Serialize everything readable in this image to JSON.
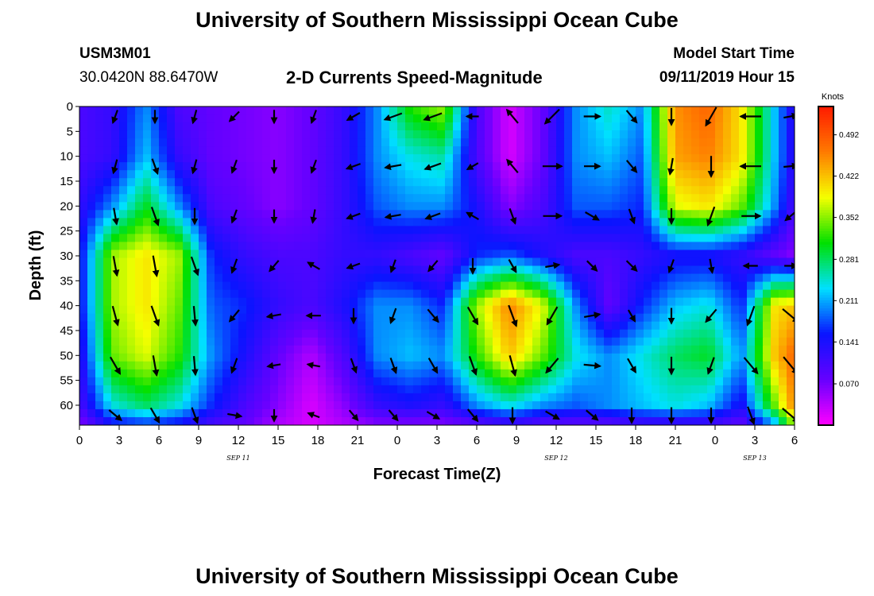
{
  "page": {
    "title_top": "University of Southern Mississippi Ocean Cube",
    "title_bottom": "University of Southern Mississippi Ocean Cube",
    "station_id": "USM3M01",
    "coords": "30.0420N 88.6470W",
    "plot_title": "2-D Currents Speed-Magnitude",
    "model_start_label": "Model Start Time",
    "model_start_value": "09/11/2019 Hour 15"
  },
  "colors": {
    "scale": [
      "#ff00ff",
      "#6600ff",
      "#0a14ff",
      "#00e0ff",
      "#00e000",
      "#f5ff00",
      "#ff7a00",
      "#ff1a00"
    ]
  },
  "chart_data": {
    "type": "heatmap",
    "title": "2-D Currents Speed-Magnitude",
    "xlabel": "Forecast Time(Z)",
    "ylabel": "Depth (ft)",
    "ylim": [
      0,
      64
    ],
    "y_reversed": true,
    "xlim_hours": [
      0,
      54
    ],
    "x_tick_labels": [
      "0",
      "3",
      "6",
      "9",
      "12",
      "15",
      "18",
      "21",
      "0",
      "3",
      "6",
      "9",
      "12",
      "15",
      "18",
      "21",
      "0",
      "3",
      "6"
    ],
    "date_labels": [
      {
        "text": "SEP 11",
        "hour": 12
      },
      {
        "text": "SEP 12",
        "hour": 36
      },
      {
        "text": "SEP 13",
        "hour": 51
      }
    ],
    "y_ticks": [
      0,
      5,
      10,
      15,
      20,
      25,
      30,
      35,
      40,
      45,
      50,
      55,
      60
    ],
    "colorbar": {
      "label": "Knots",
      "min": 0,
      "max": 0.54,
      "tick_values": [
        0.07,
        0.141,
        0.211,
        0.281,
        0.352,
        0.422,
        0.492
      ],
      "tick_labels": [
        "0.070",
        "0.141",
        "0.211",
        "0.281",
        "0.352",
        "0.422",
        "0.492"
      ]
    },
    "speed_field": {
      "hours": [
        0,
        2.5,
        5,
        7.5,
        10,
        12.5,
        15,
        17.5,
        20,
        22.5,
        25,
        27.5,
        30,
        32.5,
        35,
        37.5,
        40,
        42.5,
        45,
        47.5,
        50,
        52.5,
        54
      ],
      "depths": [
        0,
        10,
        20,
        30,
        40,
        50,
        60,
        64
      ],
      "speed_knots": [
        [
          0.1,
          0.12,
          0.2,
          0.1,
          0.08,
          0.07,
          0.06,
          0.08,
          0.12,
          0.2,
          0.32,
          0.36,
          0.1,
          0.02,
          0.08,
          0.2,
          0.25,
          0.2,
          0.45,
          0.48,
          0.4,
          0.22,
          0.12
        ],
        [
          0.1,
          0.12,
          0.22,
          0.12,
          0.08,
          0.07,
          0.06,
          0.08,
          0.12,
          0.2,
          0.24,
          0.26,
          0.1,
          0.02,
          0.08,
          0.2,
          0.22,
          0.18,
          0.44,
          0.46,
          0.4,
          0.22,
          0.12
        ],
        [
          0.12,
          0.2,
          0.3,
          0.2,
          0.1,
          0.08,
          0.06,
          0.08,
          0.12,
          0.18,
          0.2,
          0.2,
          0.14,
          0.06,
          0.1,
          0.18,
          0.18,
          0.16,
          0.38,
          0.4,
          0.34,
          0.2,
          0.1
        ],
        [
          0.14,
          0.36,
          0.4,
          0.36,
          0.16,
          0.12,
          0.1,
          0.1,
          0.12,
          0.12,
          0.1,
          0.08,
          0.16,
          0.18,
          0.14,
          0.1,
          0.1,
          0.12,
          0.14,
          0.14,
          0.12,
          0.08,
          0.06
        ],
        [
          0.14,
          0.36,
          0.4,
          0.34,
          0.18,
          0.16,
          0.12,
          0.1,
          0.14,
          0.2,
          0.2,
          0.16,
          0.36,
          0.46,
          0.38,
          0.2,
          0.08,
          0.16,
          0.22,
          0.24,
          0.16,
          0.4,
          0.42
        ],
        [
          0.12,
          0.34,
          0.38,
          0.32,
          0.2,
          0.14,
          0.08,
          0.04,
          0.1,
          0.2,
          0.22,
          0.2,
          0.32,
          0.42,
          0.34,
          0.24,
          0.2,
          0.24,
          0.28,
          0.3,
          0.2,
          0.42,
          0.48
        ],
        [
          0.1,
          0.24,
          0.28,
          0.24,
          0.16,
          0.1,
          0.06,
          0.02,
          0.06,
          0.12,
          0.14,
          0.12,
          0.2,
          0.24,
          0.2,
          0.18,
          0.2,
          0.22,
          0.24,
          0.22,
          0.14,
          0.34,
          0.46
        ],
        [
          0.06,
          0.14,
          0.16,
          0.14,
          0.1,
          0.08,
          0.04,
          0.02,
          0.04,
          0.06,
          0.06,
          0.06,
          0.08,
          0.1,
          0.08,
          0.08,
          0.08,
          0.1,
          0.1,
          0.1,
          0.08,
          0.2,
          0.36
        ]
      ]
    },
    "vector_field": {
      "hours": [
        3,
        6,
        9,
        12,
        15,
        18,
        21,
        24,
        27,
        30,
        33,
        36,
        39,
        42,
        45,
        48,
        51,
        54
      ],
      "depths": [
        2,
        12,
        22,
        32,
        42,
        52,
        62
      ],
      "direction_deg_cw_from_up": [
        [
          200,
          180,
          195,
          225,
          180,
          200,
          240,
          250,
          250,
          270,
          320,
          225,
          90,
          140,
          180,
          210,
          270,
          80
        ],
        [
          195,
          160,
          195,
          200,
          180,
          200,
          250,
          260,
          250,
          240,
          320,
          90,
          90,
          140,
          190,
          180,
          270,
          85
        ],
        [
          170,
          160,
          180,
          200,
          180,
          190,
          250,
          260,
          250,
          300,
          160,
          90,
          120,
          160,
          180,
          200,
          90,
          230
        ],
        [
          170,
          170,
          160,
          200,
          220,
          300,
          250,
          200,
          220,
          180,
          150,
          80,
          135,
          135,
          200,
          170,
          270,
          90
        ],
        [
          165,
          160,
          175,
          220,
          260,
          270,
          180,
          200,
          140,
          150,
          160,
          210,
          80,
          150,
          180,
          220,
          200,
          130
        ],
        [
          150,
          170,
          175,
          200,
          260,
          280,
          160,
          160,
          150,
          160,
          165,
          220,
          95,
          150,
          180,
          200,
          140,
          140
        ],
        [
          130,
          150,
          160,
          100,
          180,
          290,
          140,
          140,
          120,
          140,
          180,
          120,
          130,
          180,
          180,
          180,
          160,
          130
        ]
      ],
      "magnitude_knots": [
        [
          0.1,
          0.08,
          0.1,
          0.1,
          0.08,
          0.1,
          0.14,
          0.3,
          0.32,
          0.04,
          0.26,
          0.38,
          0.22,
          0.2,
          0.24,
          0.42,
          0.4,
          0.12
        ],
        [
          0.12,
          0.2,
          0.12,
          0.1,
          0.08,
          0.1,
          0.14,
          0.22,
          0.24,
          0.06,
          0.24,
          0.34,
          0.2,
          0.18,
          0.22,
          0.4,
          0.4,
          0.12
        ],
        [
          0.22,
          0.34,
          0.2,
          0.1,
          0.08,
          0.1,
          0.12,
          0.18,
          0.18,
          0.1,
          0.2,
          0.3,
          0.18,
          0.16,
          0.18,
          0.36,
          0.32,
          0.1
        ],
        [
          0.36,
          0.4,
          0.34,
          0.14,
          0.12,
          0.1,
          0.1,
          0.08,
          0.12,
          0.18,
          0.14,
          0.12,
          0.12,
          0.14,
          0.1,
          0.12,
          0.12,
          0.06
        ],
        [
          0.36,
          0.4,
          0.34,
          0.16,
          0.12,
          0.12,
          0.16,
          0.18,
          0.22,
          0.36,
          0.46,
          0.38,
          0.2,
          0.08,
          0.18,
          0.22,
          0.38,
          0.4
        ],
        [
          0.34,
          0.38,
          0.32,
          0.18,
          0.08,
          0.06,
          0.16,
          0.2,
          0.24,
          0.34,
          0.4,
          0.32,
          0.22,
          0.2,
          0.26,
          0.26,
          0.4,
          0.46
        ],
        [
          0.2,
          0.24,
          0.22,
          0.12,
          0.04,
          0.04,
          0.08,
          0.1,
          0.12,
          0.18,
          0.2,
          0.18,
          0.16,
          0.18,
          0.2,
          0.18,
          0.3,
          0.42
        ]
      ]
    }
  }
}
